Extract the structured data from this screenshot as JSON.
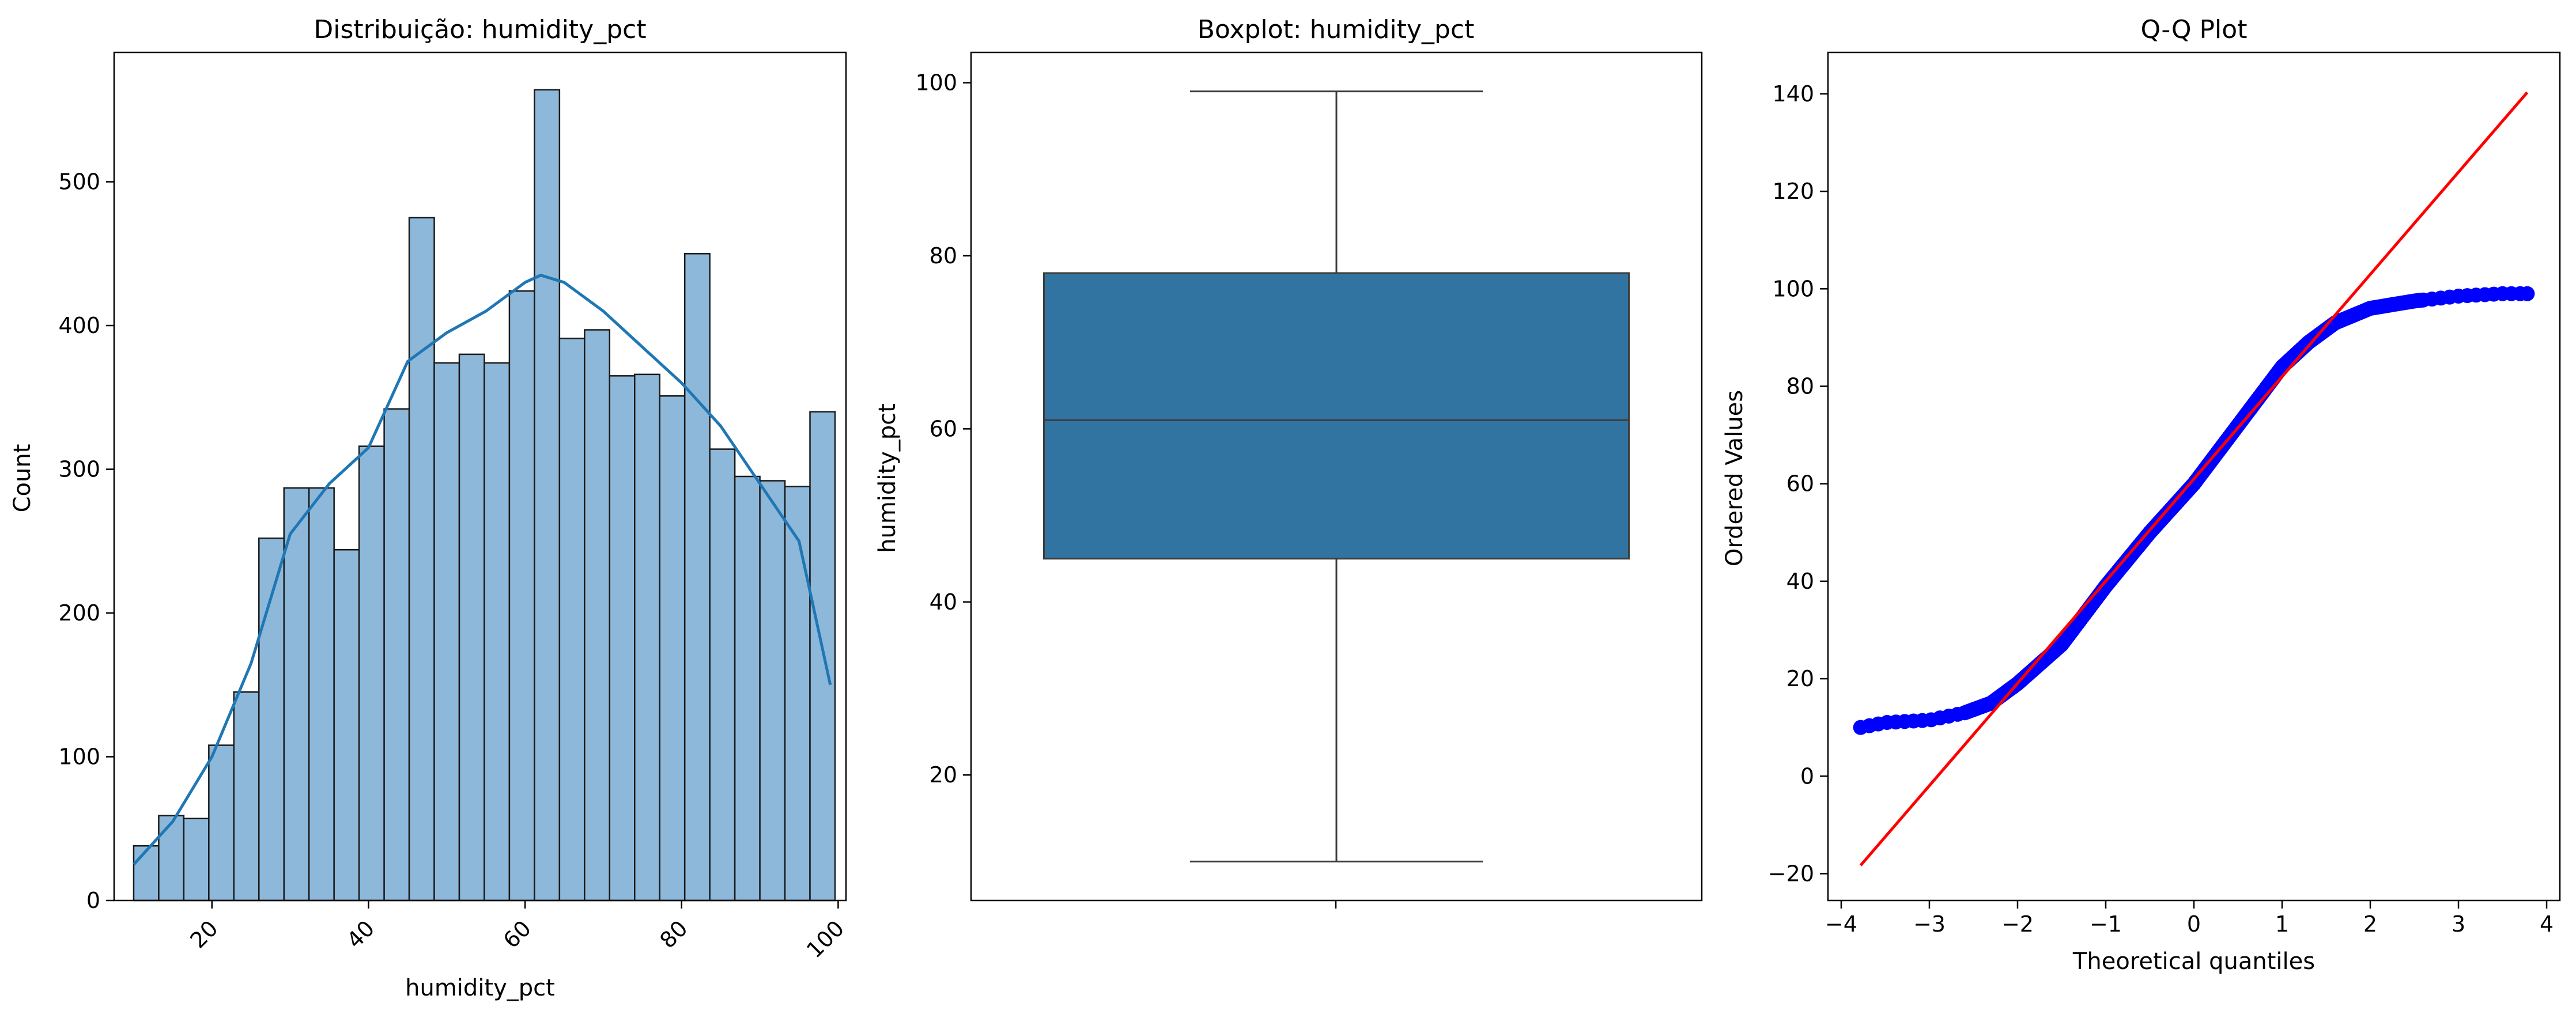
{
  "chart_data": [
    {
      "type": "bar",
      "subtype": "histogram-with-kde",
      "title": "Distribuição: humidity_pct",
      "xlabel": "humidity_pct",
      "ylabel": "Count",
      "xlim": [
        7.5,
        101
      ],
      "ylim": [
        0,
        590
      ],
      "xticks": [
        "20",
        "40",
        "60",
        "80",
        "100"
      ],
      "yticks": [
        "0",
        "100",
        "200",
        "300",
        "400",
        "500"
      ],
      "xtick_rotation": 45,
      "bar_color": "#8db8da",
      "edge_color": "#1a1a1a",
      "kde_color": "#1f77b4",
      "bins": {
        "start": 10,
        "width": 3.2,
        "counts": [
          38,
          59,
          57,
          108,
          145,
          252,
          287,
          287,
          244,
          316,
          342,
          475,
          374,
          380,
          374,
          424,
          564,
          391,
          397,
          365,
          366,
          351,
          450,
          314,
          295,
          292,
          288,
          340
        ]
      },
      "kde": {
        "x": [
          10,
          15,
          20,
          25,
          30,
          35,
          40,
          45,
          50,
          55,
          60,
          62,
          65,
          70,
          75,
          80,
          85,
          90,
          95,
          97,
          99
        ],
        "y": [
          25,
          55,
          100,
          165,
          255,
          290,
          315,
          375,
          395,
          410,
          430,
          435,
          430,
          410,
          385,
          360,
          330,
          290,
          250,
          200,
          150
        ]
      },
      "grid": false
    },
    {
      "type": "box",
      "title": "Boxplot: humidity_pct",
      "xlabel": "",
      "ylabel": "humidity_pct",
      "ylim": [
        5.5,
        103.5
      ],
      "yticks": [
        "20",
        "40",
        "60",
        "80",
        "100"
      ],
      "box_color": "#3274a1",
      "line_color": "#3d3d3d",
      "stats": {
        "whisker_low": 10,
        "q1": 45,
        "median": 61,
        "q3": 78,
        "whisker_high": 99
      },
      "grid": false
    },
    {
      "type": "scatter",
      "subtype": "qq-plot",
      "title": "Q-Q Plot",
      "xlabel": "Theoretical quantiles",
      "ylabel": "Ordered Values",
      "xlim": [
        -4.15,
        4.15
      ],
      "ylim": [
        -25.5,
        148.5
      ],
      "xticks": [
        "−4",
        "−3",
        "−2",
        "−1",
        "0",
        "1",
        "2",
        "3",
        "4"
      ],
      "yticks": [
        "−20",
        "0",
        "20",
        "40",
        "60",
        "80",
        "100",
        "120",
        "140"
      ],
      "point_color": "#0000ff",
      "line_color": "#ff0000",
      "fit_line": {
        "x": [
          -3.78,
          3.78
        ],
        "y": [
          -18.3,
          140.3
        ]
      },
      "points_anchor": {
        "x": [
          -3.78,
          -3.5,
          -3.0,
          -2.6,
          -2.3,
          -2.0,
          -1.5,
          -1.0,
          -0.5,
          0.0,
          0.5,
          1.0,
          1.3,
          1.6,
          2.0,
          2.5,
          3.0,
          3.5,
          3.78
        ],
        "y": [
          10,
          11,
          11.5,
          13,
          15,
          19,
          27,
          39,
          50,
          60,
          72,
          84,
          89,
          93,
          96,
          97.5,
          98.5,
          99,
          99
        ]
      },
      "grid": false
    }
  ]
}
